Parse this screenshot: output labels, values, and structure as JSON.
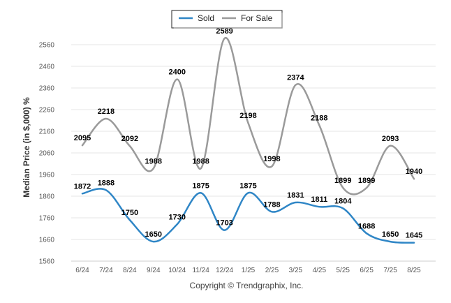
{
  "chart_data": {
    "type": "line",
    "categories": [
      "6/24",
      "7/24",
      "8/24",
      "9/24",
      "10/24",
      "11/24",
      "12/24",
      "1/25",
      "2/25",
      "3/25",
      "4/25",
      "5/25",
      "6/25",
      "7/25",
      "8/25"
    ],
    "series": [
      {
        "name": "Sold",
        "color": "#2f86c6",
        "values": [
          1872,
          1888,
          1750,
          1650,
          1730,
          1875,
          1703,
          1875,
          1788,
          1831,
          1811,
          1804,
          1688,
          1650,
          1645
        ]
      },
      {
        "name": "For Sale",
        "color": "#9a9a9a",
        "values": [
          2095,
          2218,
          2092,
          1988,
          2400,
          1988,
          2589,
          2198,
          1998,
          2374,
          2188,
          1899,
          1899,
          2093,
          1940
        ]
      }
    ],
    "ylabel": "Median Price (in $,000) %",
    "xlabel": "",
    "yticks": [
      1560,
      1660,
      1760,
      1860,
      1960,
      2060,
      2160,
      2260,
      2360,
      2460,
      2560
    ],
    "ylim": [
      1560,
      2600
    ],
    "grid": true,
    "legend_position": "top-center"
  },
  "credit": "Copyright © Trendgraphix, Inc."
}
